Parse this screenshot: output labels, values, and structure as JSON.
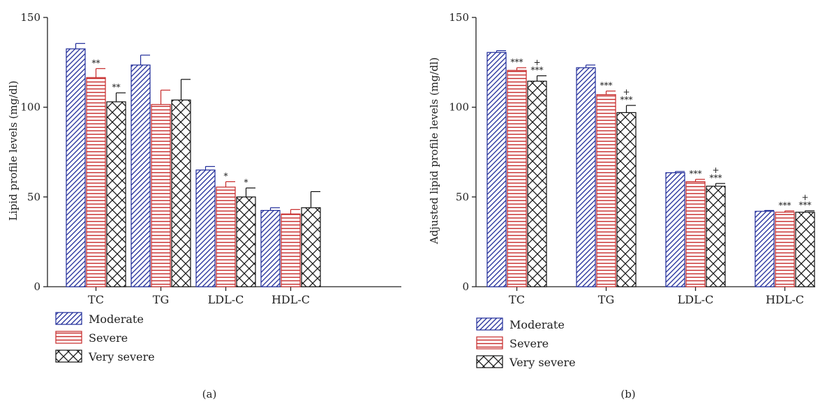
{
  "chart_data": [
    {
      "type": "bar",
      "panel_label": "(a)",
      "ylabel": "Lipid profile levels (mg/dl)",
      "ylim": [
        0,
        150
      ],
      "yticks": [
        "0",
        "50",
        "100",
        "150"
      ],
      "categories": [
        "TC",
        "TG",
        "LDL-C",
        "HDL-C"
      ],
      "legend_position": "bottom-left",
      "series": [
        {
          "name": "Moderate",
          "values": [
            132.5,
            123.5,
            65,
            42.5
          ],
          "errors": [
            3,
            5.5,
            2,
            1.5
          ],
          "marks": [
            "",
            "",
            "",
            ""
          ]
        },
        {
          "name": "Severe",
          "values": [
            116.5,
            101.5,
            55.5,
            40.5
          ],
          "errors": [
            5,
            8,
            3,
            2.5
          ],
          "marks": [
            "**",
            "",
            "*",
            ""
          ]
        },
        {
          "name": "Very severe",
          "values": [
            103,
            104,
            50,
            44
          ],
          "errors": [
            5,
            11.5,
            5,
            9
          ],
          "marks": [
            "**",
            "",
            "*",
            ""
          ]
        }
      ]
    },
    {
      "type": "bar",
      "panel_label": "(b)",
      "ylabel": "Adjusted lipid profile levels (mg/dl)",
      "ylim": [
        0,
        150
      ],
      "yticks": [
        "0",
        "50",
        "100",
        "150"
      ],
      "categories": [
        "TC",
        "TG",
        "LDL-C",
        "HDL-C"
      ],
      "legend_position": "bottom-left",
      "series": [
        {
          "name": "Moderate",
          "values": [
            130.5,
            122,
            63.5,
            42
          ],
          "errors": [
            1,
            1.5,
            0.7,
            0.5
          ],
          "marks": [
            "",
            "",
            "",
            ""
          ]
        },
        {
          "name": "Severe",
          "values": [
            120.5,
            107,
            58.5,
            41.5
          ],
          "errors": [
            1.5,
            2,
            1.3,
            0.7
          ],
          "marks": [
            "***",
            "***",
            "***",
            "***"
          ]
        },
        {
          "name": "Very severe",
          "values": [
            114.5,
            97,
            56,
            41.5
          ],
          "errors": [
            3,
            4,
            1.5,
            0.8
          ],
          "marks": [
            "+\n***",
            "+\n***",
            "+\n***",
            "+\n***"
          ]
        }
      ]
    }
  ],
  "colors": {
    "moderate_stroke": "#1f2b99",
    "severe_stroke": "#c62828",
    "very_severe_stroke": "#111111"
  }
}
